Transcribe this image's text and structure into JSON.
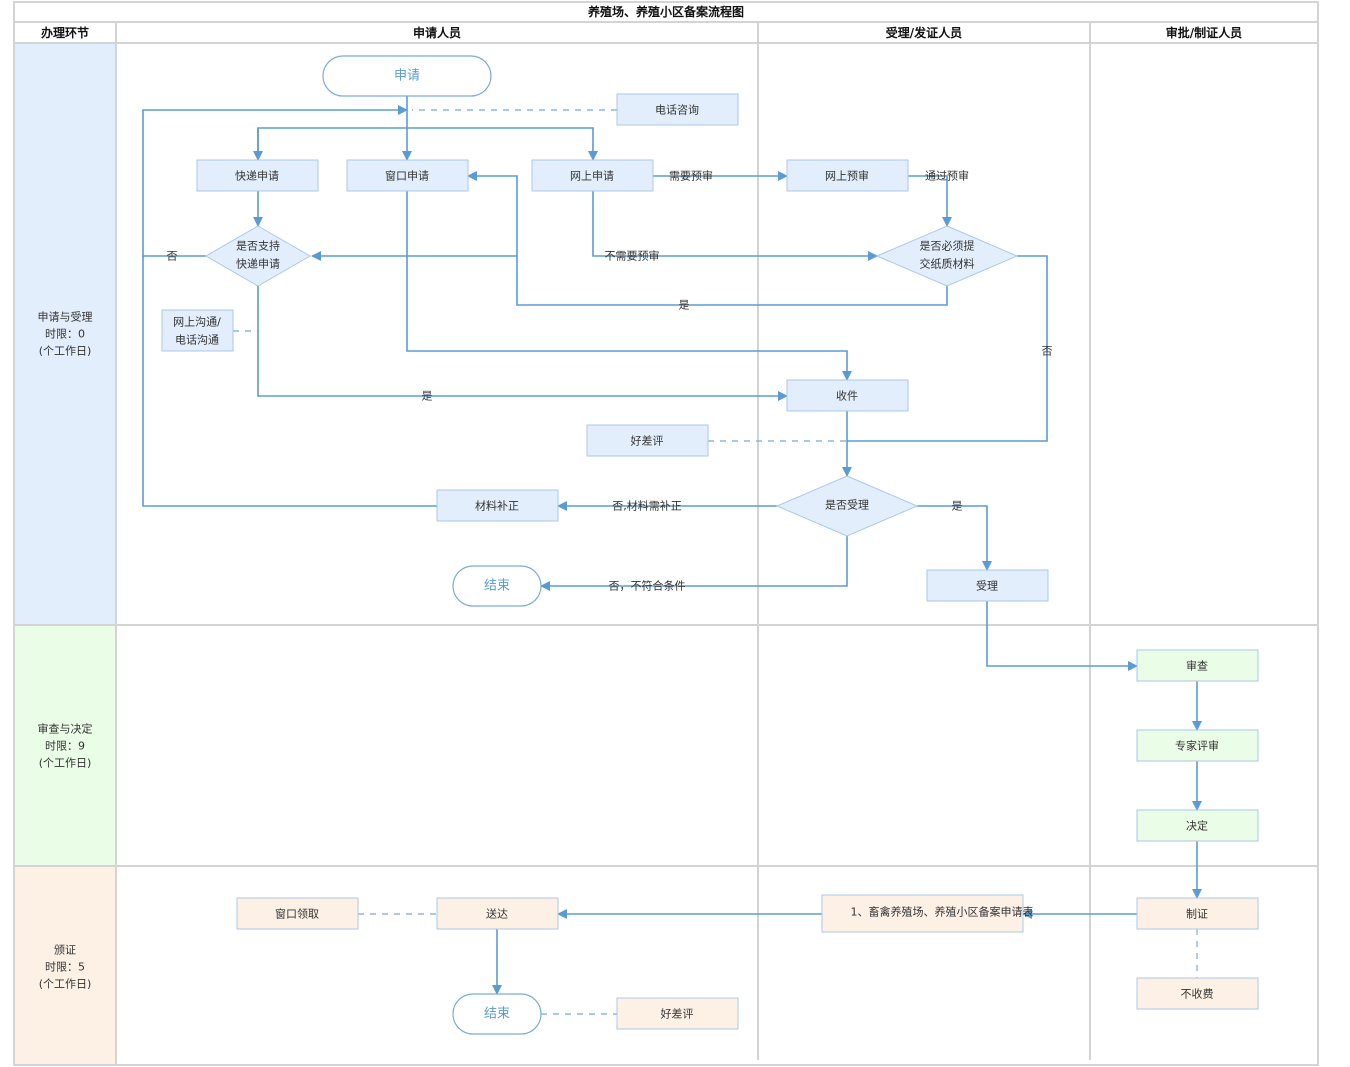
{
  "title": "养殖场、养殖小区备案流程图",
  "columns": [
    "办理环节",
    "申请人员",
    "受理/发证人员",
    "审批/制证人员"
  ],
  "stages": [
    {
      "name": "申请与受理",
      "limit": "时限：0",
      "unit": "(个工作日)"
    },
    {
      "name": "审查与决定",
      "limit": "时限：9",
      "unit": "(个工作日)"
    },
    {
      "name": "颁证",
      "limit": "时限：5",
      "unit": "(个工作日)"
    }
  ],
  "colors": {
    "stage1": "#e3eefc",
    "stage2": "#eafde6",
    "stage3": "#fdf1e6",
    "edge": "#5b9bd5"
  },
  "nodes": {
    "apply": "申请",
    "phone_consult": "电话咨询",
    "express_apply": "快递申请",
    "window_apply": "窗口申请",
    "online_apply": "网上申请",
    "online_precheck": "网上预审",
    "express_support_1": "是否支持",
    "express_support_2": "快递申请",
    "paper_required_1": "是否必须提",
    "paper_required_2": "交纸质材料",
    "online_comm_1": "网上沟通/",
    "online_comm_2": "电话沟通",
    "receive": "收件",
    "rating1": "好差评",
    "accept_decision": "是否受理",
    "supplement": "材料补正",
    "end1": "结束",
    "accept": "受理",
    "review": "审查",
    "expert_review": "专家评审",
    "decide": "决定",
    "make_cert": "制证",
    "no_fee": "不收费",
    "form": "1、畜禽养殖场、养殖小区备案申请表",
    "deliver": "送达",
    "window_pickup": "窗口领取",
    "end2": "结束",
    "rating2": "好差评"
  },
  "edge_labels": {
    "need_precheck": "需要预审",
    "pass_precheck": "通过预审",
    "no_precheck": "不需要预审",
    "no1": "否",
    "yes_paper": "是",
    "no_paper": "否",
    "yes_express": "是",
    "no_supplement": "否,材料需补正",
    "no_unqualified": "否，不符合条件",
    "yes_accept": "是"
  }
}
